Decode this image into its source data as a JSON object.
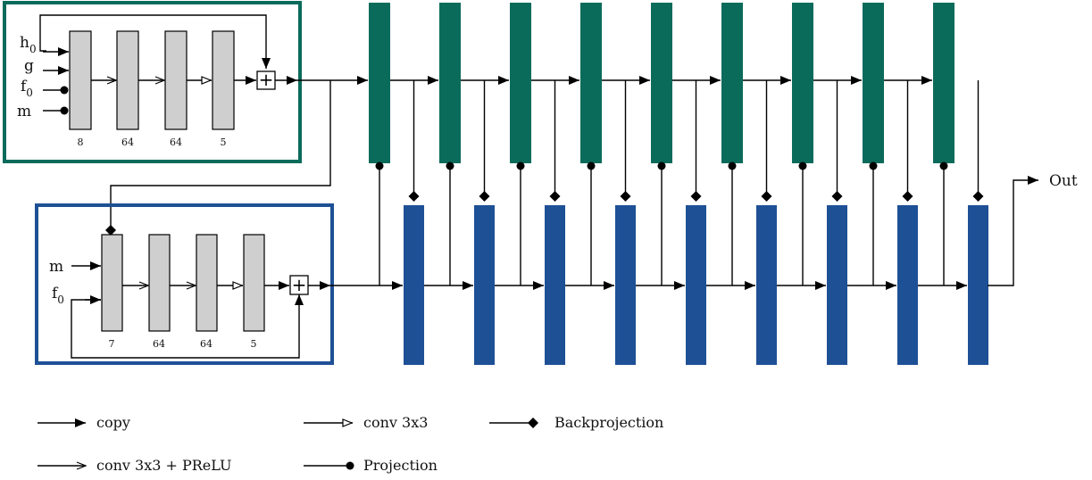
{
  "colors": {
    "green": "#0b6b5b",
    "blue": "#1e5096",
    "gray_layer": "#cfcfcf",
    "line": "#000000"
  },
  "top_module": {
    "inputs": [
      {
        "name": "h",
        "sub": "0",
        "marker": "arrow"
      },
      {
        "name": "g",
        "sub": "",
        "marker": "arrow"
      },
      {
        "name": "f",
        "sub": "0",
        "marker": "dot"
      },
      {
        "name": "m",
        "sub": "",
        "marker": "dot"
      }
    ],
    "layer_channels": [
      "8",
      "64",
      "64",
      "5"
    ],
    "sum_symbol": "+"
  },
  "bottom_module": {
    "inputs": [
      {
        "name": "m",
        "sub": "",
        "marker": "arrow"
      },
      {
        "name": "f",
        "sub": "0",
        "marker": "arrow"
      }
    ],
    "layer_channels": [
      "7",
      "64",
      "64",
      "5"
    ],
    "sum_symbol": "+"
  },
  "output_label": "Out",
  "legend": [
    {
      "marker": "filled-arrow",
      "label": "copy"
    },
    {
      "marker": "open-triangle",
      "label": "conv 3x3"
    },
    {
      "marker": "diamond",
      "label": "Backprojection"
    },
    {
      "marker": "chevron",
      "label": "conv 3x3 + PReLU"
    },
    {
      "marker": "circle",
      "label": "Projection"
    }
  ],
  "stages": 9
}
